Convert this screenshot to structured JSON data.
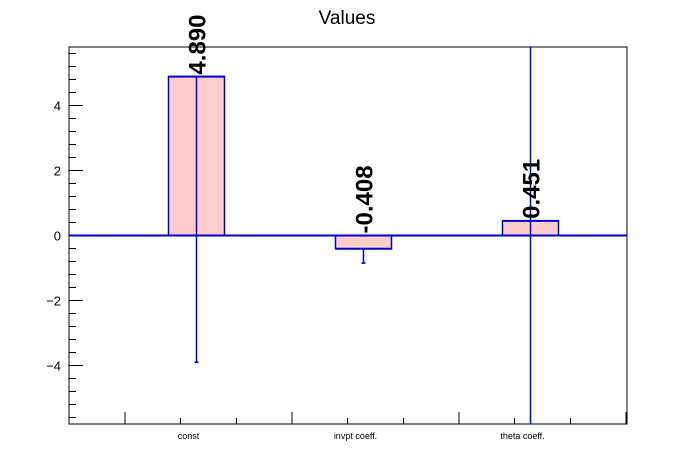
{
  "chart_data": {
    "type": "bar",
    "title": "Values",
    "categories": [
      "const",
      "invpt coeff.",
      "theta coeff."
    ],
    "values": [
      4.89,
      -0.408,
      0.451
    ],
    "value_labels": [
      "4.890",
      "-0.408",
      "0.451"
    ],
    "error_low": [
      -3.9,
      -0.85,
      -5.8
    ],
    "error_high": [
      4.89,
      -0.408,
      5.8
    ],
    "ylim": [
      -5.8,
      5.8
    ],
    "yticks": [
      -4,
      -2,
      0,
      2,
      4
    ],
    "ytick_labels": [
      "−4",
      "−2",
      "0",
      "2",
      "4"
    ],
    "xlabel": "",
    "ylabel": "",
    "grid": false,
    "colors": {
      "bar_fill": "#ffcccc",
      "bar_stroke": "#0000cc",
      "zero_line": "#0000cc",
      "error_bar": "#0000cc"
    }
  }
}
